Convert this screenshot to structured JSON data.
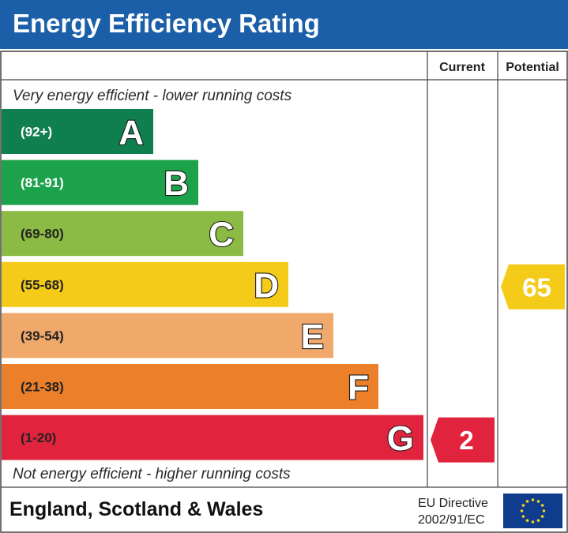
{
  "header": {
    "title": "Energy Efficiency Rating"
  },
  "columns": {
    "current": "Current",
    "potential": "Potential"
  },
  "notes": {
    "top": "Very energy efficient - lower running costs",
    "bottom": "Not energy efficient - higher running costs"
  },
  "footer": {
    "region": "England, Scotland & Wales",
    "directive_line1": "EU Directive",
    "directive_line2": "2002/91/EC"
  },
  "chart_data": {
    "type": "bar",
    "title": "Energy Efficiency Rating",
    "categories": [
      "A",
      "B",
      "C",
      "D",
      "E",
      "F",
      "G"
    ],
    "ranges": [
      "(92+)",
      "(81-91)",
      "(69-80)",
      "(55-68)",
      "(39-54)",
      "(21-38)",
      "(1-20)"
    ],
    "colors": [
      "#0f7f4f",
      "#1ca24a",
      "#8bbb45",
      "#f5cb1a",
      "#f0a86b",
      "#ec7f2a",
      "#e2233e"
    ],
    "range_text_colors": [
      "#ffffff",
      "#ffffff",
      "#222222",
      "#222222",
      "#222222",
      "#222222",
      "#222222"
    ],
    "current": {
      "value": 2,
      "band": "G"
    },
    "potential": {
      "value": 65,
      "band": "D"
    }
  }
}
